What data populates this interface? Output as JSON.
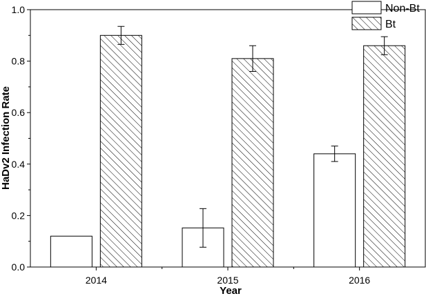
{
  "chart_data": {
    "type": "bar",
    "categories": [
      "2014",
      "2015",
      "2016"
    ],
    "xlabel": "Year",
    "ylabel": "HaDv2 Infection Rate",
    "ylim": [
      0,
      1.0
    ],
    "yticks": [
      "0.0",
      "0.2",
      "0.4",
      "0.6",
      "0.8",
      "1.0"
    ],
    "legend_position": "top-right",
    "grid": false,
    "series": [
      {
        "name": "Non-Bt",
        "fill": "white",
        "values": [
          0.12,
          0.152,
          0.44
        ],
        "error": [
          0,
          0.075,
          0.03
        ]
      },
      {
        "name": "Bt",
        "fill": "hatched",
        "values": [
          0.9,
          0.81,
          0.86
        ],
        "error": [
          0.035,
          0.05,
          0.035
        ]
      }
    ]
  }
}
